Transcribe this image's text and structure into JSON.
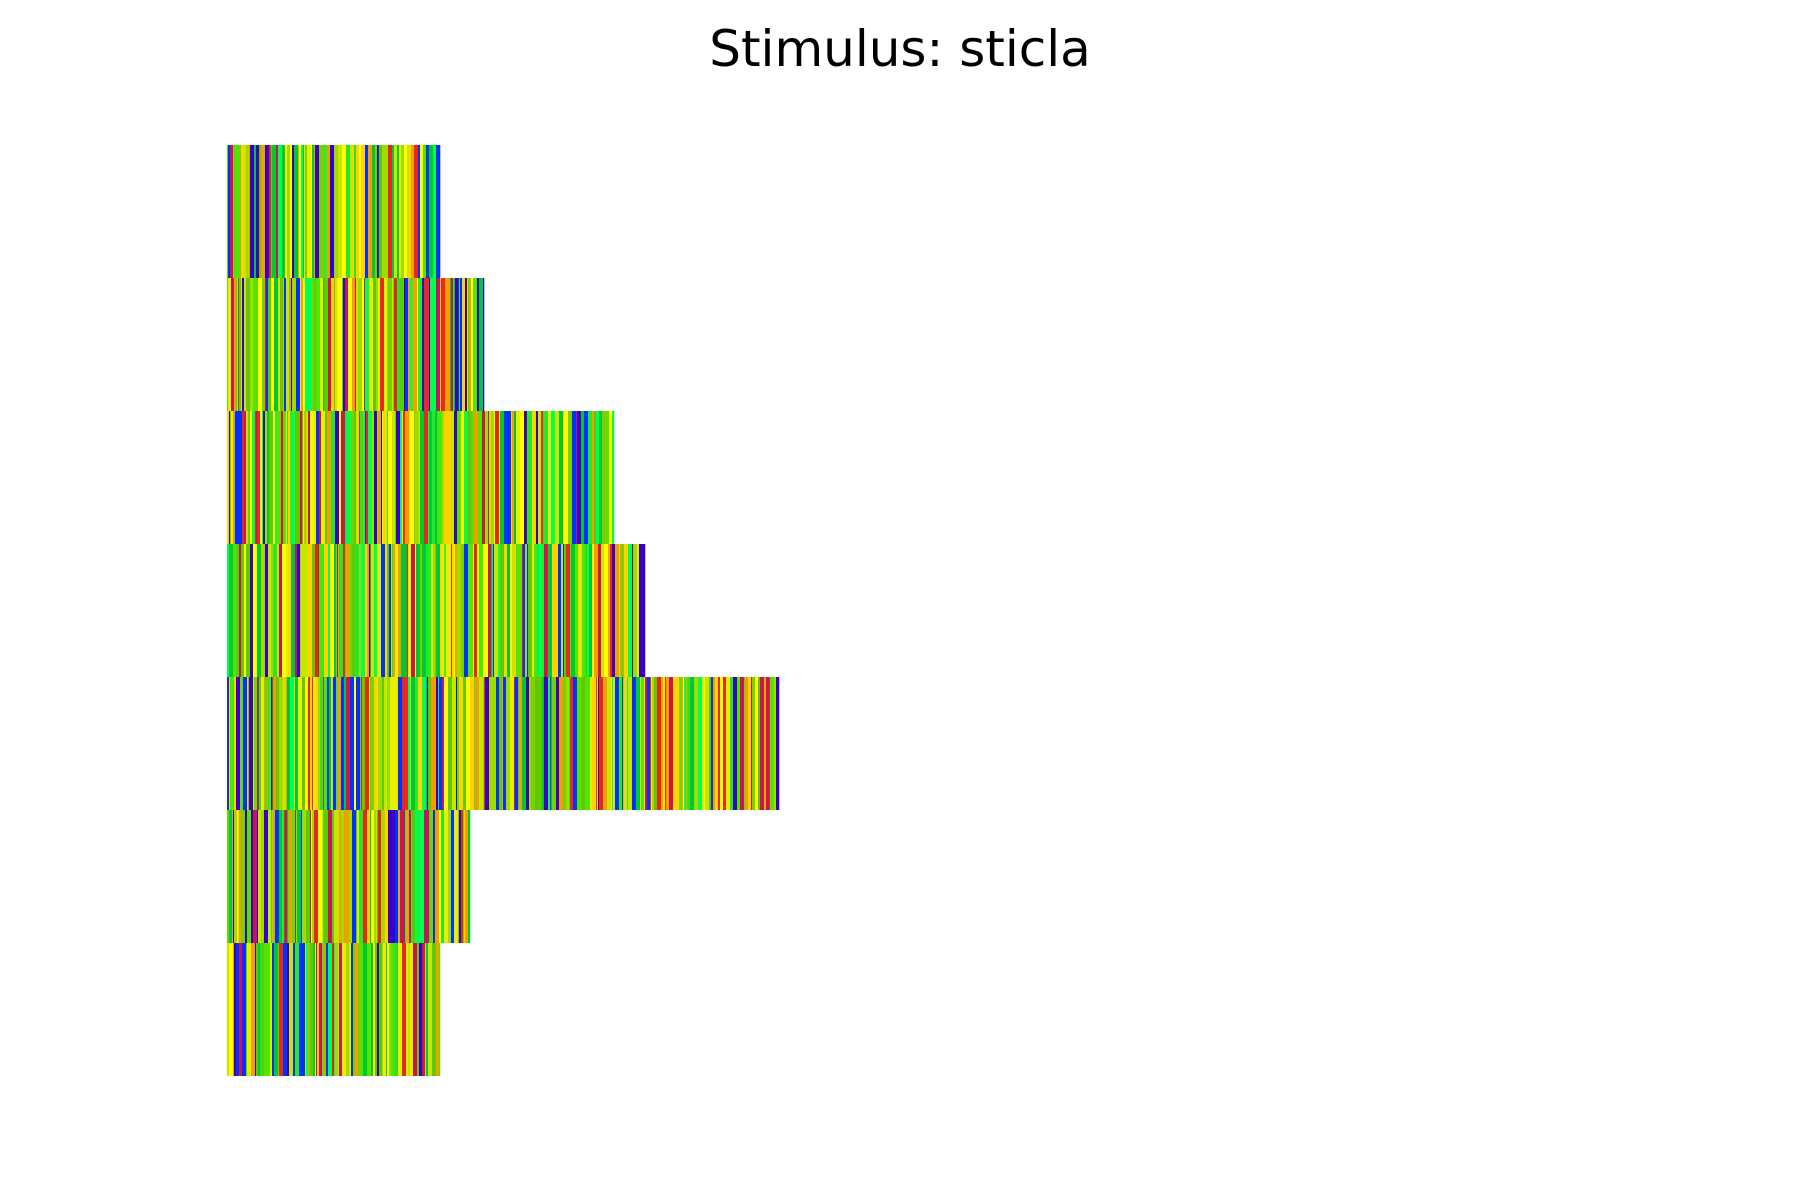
{
  "chart_data": {
    "type": "heatmap",
    "title": "Stimulus: sticla",
    "xlabel": "",
    "ylabel": "",
    "axes_visible": false,
    "grid": false,
    "legend": "none",
    "description_values": "each row is a sequence of colored stripes; value = row length in samples",
    "rows": [
      {
        "length": 213,
        "seed": 11
      },
      {
        "length": 257,
        "seed": 23
      },
      {
        "length": 387,
        "seed": 37
      },
      {
        "length": 418,
        "seed": 41
      },
      {
        "length": 552,
        "seed": 53
      },
      {
        "length": 243,
        "seed": 67
      },
      {
        "length": 213,
        "seed": 79
      }
    ],
    "palette": [
      "#3b00c8",
      "#0032ff",
      "#00c832",
      "#28e628",
      "#50e600",
      "#78d200",
      "#a0dc00",
      "#c8e600",
      "#e6f000",
      "#ffff00",
      "#ffd200",
      "#f0a000",
      "#e6281e",
      "#c8145a",
      "#64c800",
      "#00ff50"
    ]
  }
}
